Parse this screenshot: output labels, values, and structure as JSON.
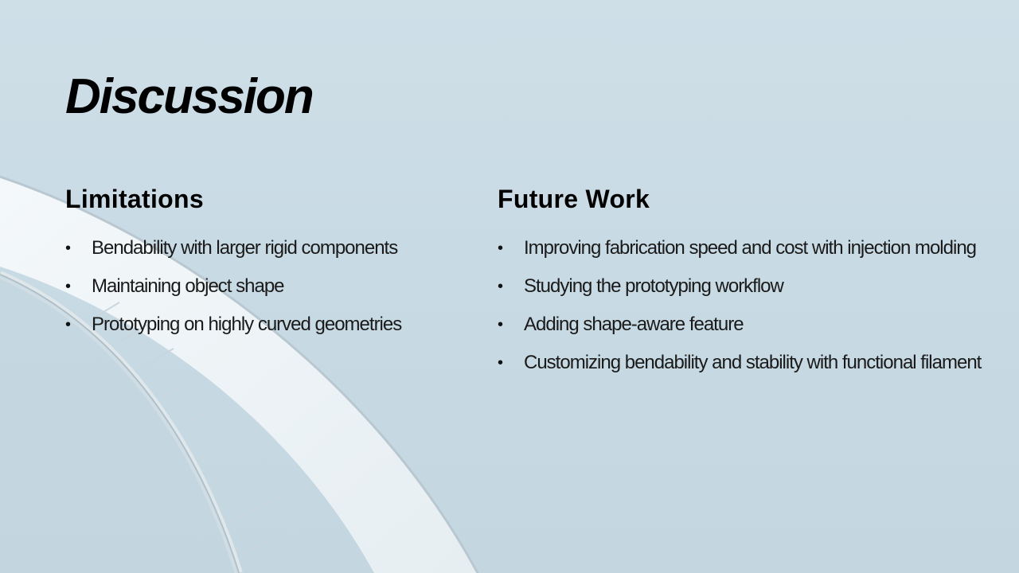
{
  "slide": {
    "title": "Discussion",
    "background_color": "#cbdce6",
    "accent_color": "#000000"
  },
  "limitations": {
    "heading": "Limitations",
    "items": [
      "Bendability with larger rigid components",
      "Maintaining object shape",
      "Prototyping on highly curved geometries"
    ]
  },
  "future_work": {
    "heading": "Future Work",
    "items": [
      "Improving fabrication speed and cost with injection molding",
      "Studying the prototyping workflow",
      "Adding shape-aware feature",
      "Customizing bendability and stability with functional filament"
    ]
  },
  "bullet_glyph": "•"
}
